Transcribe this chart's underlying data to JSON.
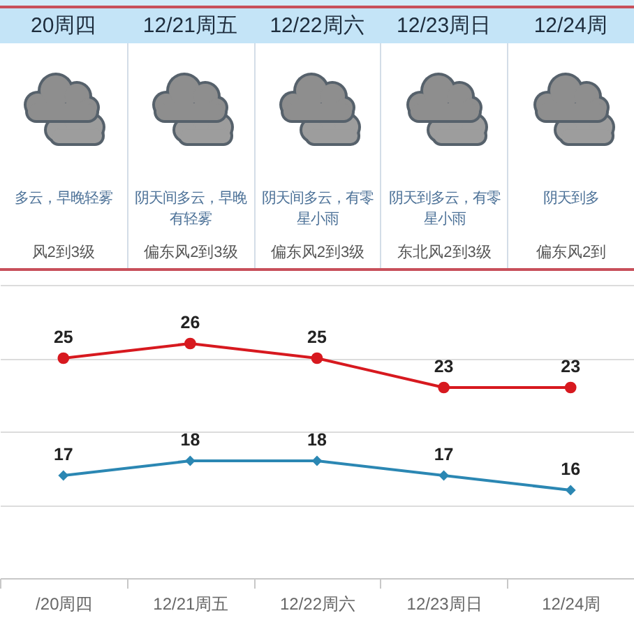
{
  "chart_data": {
    "type": "line",
    "categories": [
      "/20周四",
      "12/21周五",
      "12/22周六",
      "12/23周日",
      "12/24周"
    ],
    "series": [
      {
        "color": "#d7191f",
        "marker": "circle",
        "values": [
          25,
          26,
          25,
          23,
          23
        ]
      },
      {
        "color": "#2b87b3",
        "marker": "diamond",
        "values": [
          17,
          18,
          18,
          17,
          16
        ]
      }
    ],
    "ylim": [
      10,
      30
    ],
    "yticks": [
      {
        "value": 10,
        "label": null
      },
      {
        "value": 15,
        "label": null
      },
      {
        "value": 20,
        "label": null
      },
      {
        "value": 25,
        "label": null
      },
      {
        "value": 30,
        "label": null
      }
    ],
    "tick_labels": "x",
    "grid": "y",
    "data_labels": true,
    "line_style": "solid",
    "annotations": [
      "20周四",
      "12/21周五",
      "12/22周六",
      "12/23周日",
      "12/24周",
      "多云，早晚轻雾",
      "阴天间多云，早晚有轻雾",
      "阴天间多云，有零星小雨",
      "阴天到多云，有零星小雨",
      "阴天到多",
      "风2到3级",
      "偏东风2到3级",
      "偏东风2到3级",
      "东北风2到3级",
      "偏东风2到"
    ]
  }
}
